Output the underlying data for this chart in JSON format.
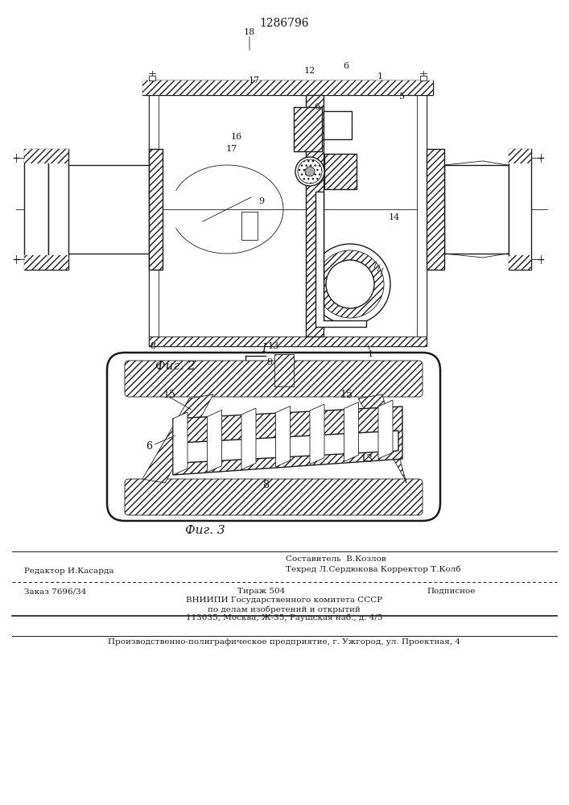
{
  "patent_number": "1286796",
  "fig2_label": "Фиг. 2",
  "fig3_label": "Фиг. 3",
  "fig1_label": "I",
  "bg_color": "#ffffff",
  "line_color": "#1a1a1a",
  "footer_line1_left": "Редактор И.Касарда",
  "footer_line1_right": "Составитель  В.Козлов",
  "footer_line2_right": "Техред Л.Сердюкова Корректор Т.Колб",
  "footer_order": "Заказ 7696/34",
  "footer_tirazh": "Тираж 504",
  "footer_podp": "Подписное",
  "footer_vniip1": "ВНИИПИ Государственного комитета СССР",
  "footer_vniip2": "по делам изобретений и открытий",
  "footer_vniip3": "113035, Москва, Ж-35, Раушская наб., д. 4/5",
  "footer_print": "Производственно-полиграфическое предприятие, г. Ужгород, ул. Проектная, 4"
}
